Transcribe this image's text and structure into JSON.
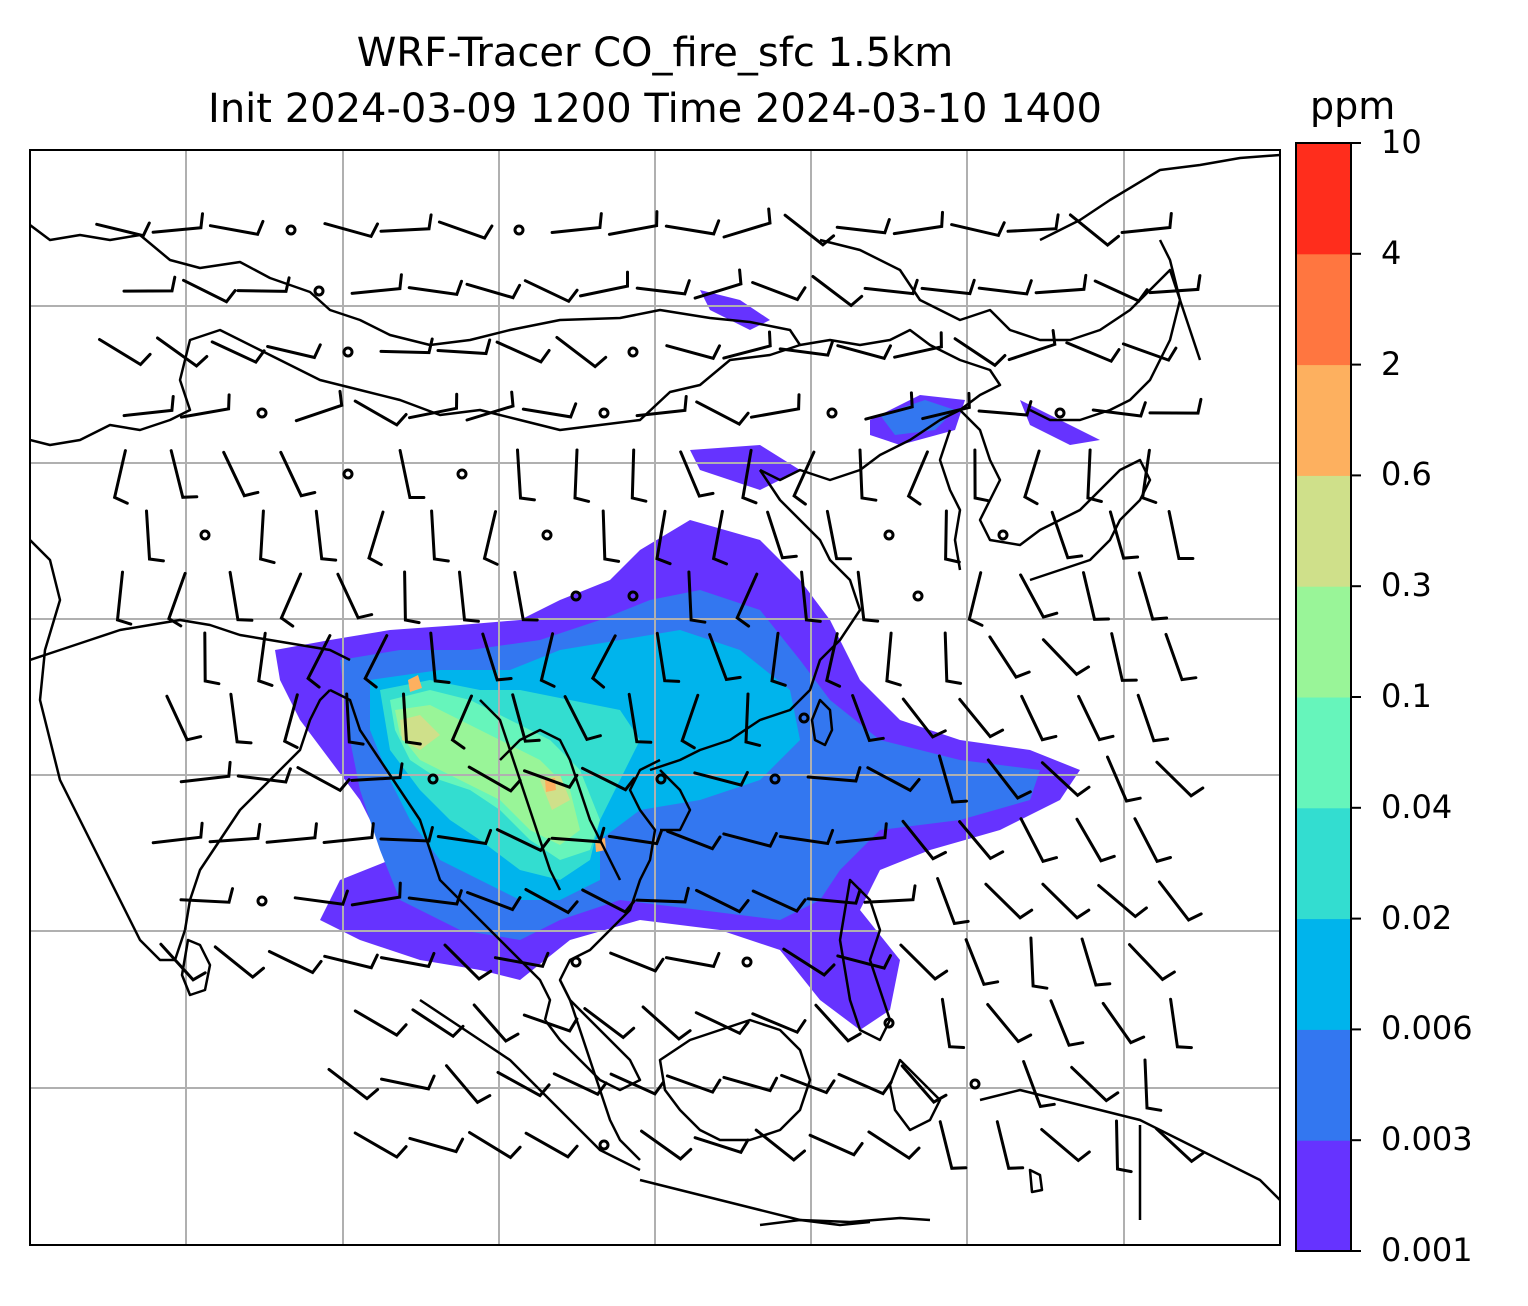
{
  "title_line1": "WRF-Tracer CO_fire_sfc 1.5km",
  "title_line2": "Init 2024-03-09 1200 Time 2024-03-10 1400",
  "colorbar": {
    "unit": "ppm",
    "levels": [
      "0.001",
      "0.003",
      "0.006",
      "0.02",
      "0.04",
      "0.1",
      "0.3",
      "0.6",
      "2",
      "4",
      "10"
    ],
    "colors": [
      "#6633ff",
      "#3377f0",
      "#00b4ec",
      "#33ddd0",
      "#66f5bb",
      "#99f598",
      "#cfe08a",
      "#fdb05f",
      "#ff7640",
      "#ff2d1c"
    ]
  },
  "map": {
    "gridlines": true,
    "wind_barbs": true,
    "plume_colors": {
      "faint": "#6633ff",
      "low": "#3377f0",
      "mid": "#00b4ec",
      "midhigh": "#33ddd0",
      "high": "#66f5bb",
      "higher": "#99f598",
      "peak": "#cfe08a",
      "hot": "#fdb05f"
    }
  }
}
